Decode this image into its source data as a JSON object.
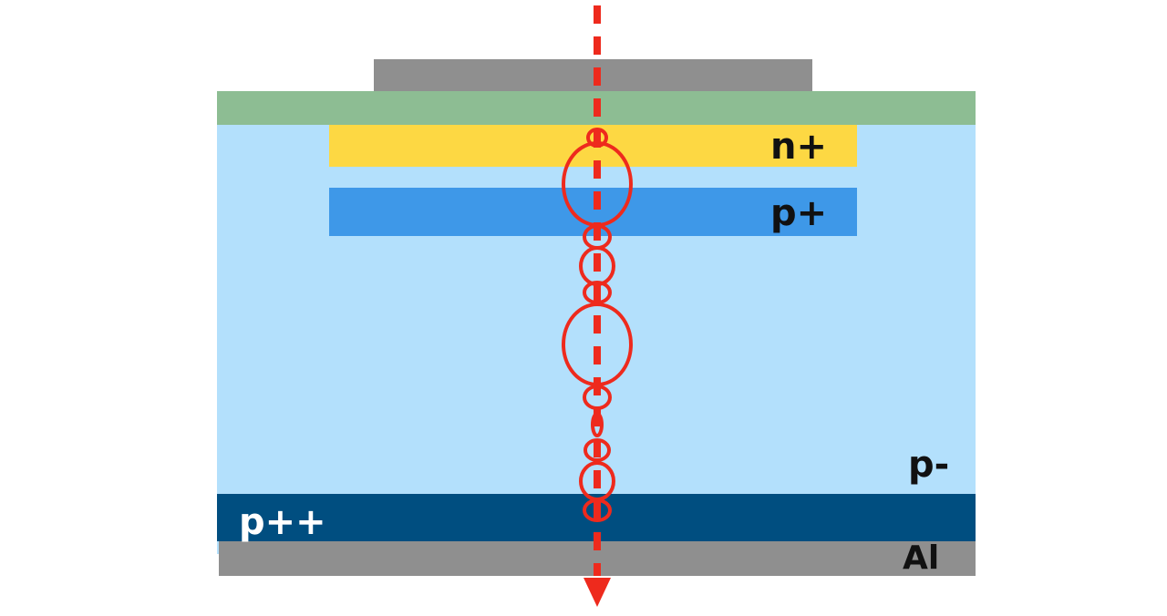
{
  "layers": {
    "n_plus": {
      "label": "n+"
    },
    "p_plus": {
      "label": "p+"
    },
    "p_minus": {
      "label": "p-"
    },
    "p_plus_plus": {
      "label": "p++"
    },
    "aluminum": {
      "label": "Al"
    }
  },
  "colors": {
    "top_electrode": "#8f8f8f",
    "oxide": "#8dbd93",
    "substrate": "#b3e0fc",
    "n_plus": "#fdd843",
    "p_plus": "#3e98e8",
    "p_plus_plus": "#004e80",
    "aluminum": "#8f8f8f",
    "track": "#ee2a1d"
  }
}
